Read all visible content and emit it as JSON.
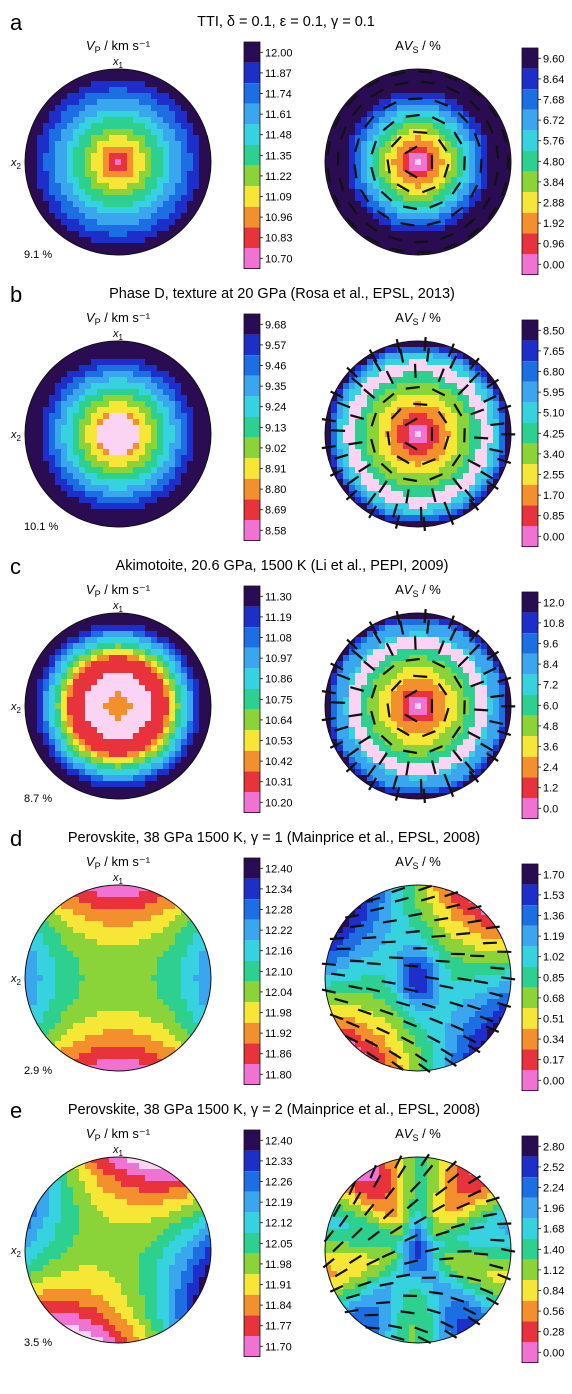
{
  "colors": [
    "#fbd3f3",
    "#f072d2",
    "#e8323c",
    "#f48f2e",
    "#f6e636",
    "#8ad43a",
    "#2dd08e",
    "#36d2e0",
    "#3aa6ee",
    "#1c6ee2",
    "#1d2fc8",
    "#2a0c52"
  ],
  "chart_data": [
    {
      "type": "heatmap",
      "letter": "a",
      "title": "TTI, δ = 0.1, ε = 0.1, γ = 0.1",
      "vp": {
        "label": "V_P / km s⁻¹",
        "axis_x1": "x1",
        "axis_x2": "x2",
        "anisotropy_label": "9.1 %",
        "colorbar_ticks": [
          "12.00",
          "11.87",
          "11.74",
          "11.61",
          "11.48",
          "11.35",
          "11.22",
          "11.09",
          "10.96",
          "10.83",
          "10.70"
        ],
        "range": [
          10.7,
          12.0
        ]
      },
      "avs": {
        "label": "AV_S / %",
        "colorbar_ticks": [
          "9.60",
          "8.64",
          "7.68",
          "6.72",
          "5.76",
          "4.80",
          "3.84",
          "2.88",
          "1.92",
          "0.96",
          "0.00"
        ],
        "range": [
          0.0,
          9.6
        ]
      }
    },
    {
      "type": "heatmap",
      "letter": "b",
      "title": "Phase D, texture at 20 GPa (Rosa et al., EPSL, 2013)",
      "vp": {
        "label": "V_P / km s⁻¹",
        "axis_x1": "x1",
        "axis_x2": "x2",
        "anisotropy_label": "10.1 %",
        "colorbar_ticks": [
          "9.68",
          "9.57",
          "9.46",
          "9.35",
          "9.24",
          "9.13",
          "9.02",
          "8.91",
          "8.80",
          "8.69",
          "8.58"
        ],
        "range": [
          8.58,
          9.68
        ]
      },
      "avs": {
        "label": "AV_S / %",
        "colorbar_ticks": [
          "8.50",
          "7.65",
          "6.80",
          "5.95",
          "5.10",
          "4.25",
          "3.40",
          "2.55",
          "1.70",
          "0.85",
          "0.00"
        ],
        "range": [
          0.0,
          8.5
        ]
      }
    },
    {
      "type": "heatmap",
      "letter": "c",
      "title": "Akimotoite, 20.6 GPa, 1500 K (Li et al., PEPI, 2009)",
      "vp": {
        "label": "V_P / km s⁻¹",
        "axis_x1": "x1",
        "axis_x2": "x2",
        "anisotropy_label": "8.7 %",
        "colorbar_ticks": [
          "11.30",
          "11.19",
          "11.08",
          "10.97",
          "10.86",
          "10.75",
          "10.64",
          "10.53",
          "10.42",
          "10.31",
          "10.20"
        ],
        "range": [
          10.2,
          11.3
        ]
      },
      "avs": {
        "label": "AV_S / %",
        "colorbar_ticks": [
          "12.0",
          "10.8",
          "9.6",
          "8.4",
          "7.2",
          "6.0",
          "4.8",
          "3.6",
          "2.4",
          "1.2",
          "0.0"
        ],
        "range": [
          0.0,
          12.0
        ]
      }
    },
    {
      "type": "heatmap",
      "letter": "d",
      "title": "Perovskite, 38 GPa 1500 K, γ = 1 (Mainprice et al., EPSL, 2008)",
      "vp": {
        "label": "V_P / km s⁻¹",
        "axis_x1": "x1",
        "axis_x2": "x2",
        "anisotropy_label": "2.9 %",
        "colorbar_ticks": [
          "12.40",
          "12.34",
          "12.28",
          "12.22",
          "12.16",
          "12.10",
          "12.04",
          "11.98",
          "11.92",
          "11.86",
          "11.80"
        ],
        "range": [
          11.8,
          12.4
        ]
      },
      "avs": {
        "label": "AV_S / %",
        "colorbar_ticks": [
          "1.70",
          "1.53",
          "1.36",
          "1.19",
          "1.02",
          "0.85",
          "0.68",
          "0.51",
          "0.34",
          "0.17",
          "0.00"
        ],
        "range": [
          0.0,
          1.7
        ]
      }
    },
    {
      "type": "heatmap",
      "letter": "e",
      "title": "Perovskite, 38 GPa 1500 K, γ = 2 (Mainprice et al., EPSL, 2008)",
      "vp": {
        "label": "V_P / km s⁻¹",
        "axis_x1": "x1",
        "axis_x2": "x2",
        "anisotropy_label": "3.5 %",
        "colorbar_ticks": [
          "12.40",
          "12.33",
          "12.26",
          "12.19",
          "12.12",
          "12.05",
          "11.98",
          "11.91",
          "11.84",
          "11.77",
          "11.70"
        ],
        "range": [
          11.7,
          12.4
        ]
      },
      "avs": {
        "label": "AV_S / %",
        "colorbar_ticks": [
          "2.80",
          "2.52",
          "2.24",
          "1.96",
          "1.68",
          "1.40",
          "1.12",
          "0.84",
          "0.56",
          "0.28",
          "0.00"
        ],
        "range": [
          0.0,
          2.8
        ]
      }
    }
  ]
}
